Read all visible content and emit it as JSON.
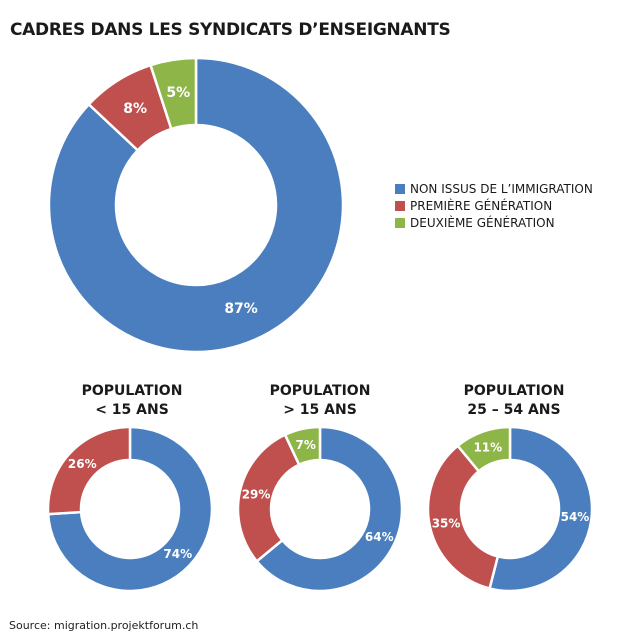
{
  "title": "CADRES DANS LES SYNDICATS D’ENSEIGNANTS",
  "legend": [
    {
      "label": "NON ISSUS DE L’IMMIGRATION",
      "color": "#4a7ebf"
    },
    {
      "label": "PREMIÈRE GÉNÉRATION",
      "color": "#c0504d"
    },
    {
      "label": "DEUXIÈME GÉNÉRATION",
      "color": "#8db548"
    }
  ],
  "source": "Source: migration.projektforum.ch",
  "chart_data": [
    {
      "type": "pie",
      "subtype": "donut",
      "title": "CADRES DANS LES SYNDICATS D’ENSEIGNANTS",
      "categories": [
        "NON ISSUS DE L’IMMIGRATION",
        "PREMIÈRE GÉNÉRATION",
        "DEUXIÈME GÉNÉRATION"
      ],
      "values": [
        87,
        8,
        5
      ],
      "labels": [
        "87%",
        "8%",
        "5%"
      ],
      "colors": [
        "#4a7ebf",
        "#c0504d",
        "#8db548"
      ],
      "legend_position": "right"
    },
    {
      "type": "pie",
      "subtype": "donut",
      "title_lines": [
        "POPULATION",
        "< 15 ANS"
      ],
      "categories": [
        "NON ISSUS DE L’IMMIGRATION",
        "PREMIÈRE GÉNÉRATION",
        "DEUXIÈME GÉNÉRATION"
      ],
      "values": [
        74,
        26,
        0
      ],
      "labels": [
        "74%",
        "26%",
        ""
      ],
      "colors": [
        "#4a7ebf",
        "#c0504d",
        "#8db548"
      ]
    },
    {
      "type": "pie",
      "subtype": "donut",
      "title_lines": [
        "POPULATION",
        "> 15 ANS"
      ],
      "categories": [
        "NON ISSUS DE L’IMMIGRATION",
        "PREMIÈRE GÉNÉRATION",
        "DEUXIÈME GÉNÉRATION"
      ],
      "values": [
        64,
        29,
        7
      ],
      "labels": [
        "64%",
        "29%",
        "7%"
      ],
      "colors": [
        "#4a7ebf",
        "#c0504d",
        "#8db548"
      ]
    },
    {
      "type": "pie",
      "subtype": "donut",
      "title_lines": [
        "POPULATION",
        "25 – 54 ANS"
      ],
      "categories": [
        "NON ISSUS DE L’IMMIGRATION",
        "PREMIÈRE GÉNÉRATION",
        "DEUXIÈME GÉNÉRATION"
      ],
      "values": [
        54,
        35,
        11
      ],
      "labels": [
        "54%",
        "35%",
        "11%"
      ],
      "colors": [
        "#4a7ebf",
        "#c0504d",
        "#8db548"
      ]
    }
  ]
}
